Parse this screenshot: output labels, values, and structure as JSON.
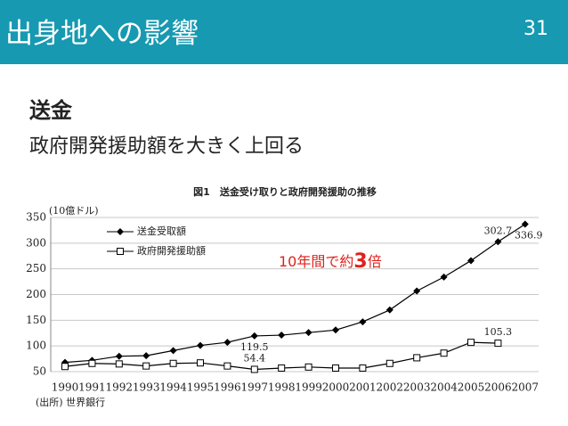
{
  "header": {
    "title": "出身地への影響",
    "page": "31"
  },
  "heading": "送金",
  "subheading": "政府開発援助額を大きく上回る",
  "chart_data": {
    "type": "line",
    "title": "図1　送金受け取りと政府開発援助の推移",
    "y_label": "(10億ドル)",
    "source": "(出所) 世界銀行",
    "annotation": {
      "prefix": "10年間で約",
      "emphasis": "3",
      "suffix": "倍"
    },
    "categories": [
      "1990",
      "1991",
      "1992",
      "1993",
      "1994",
      "1995",
      "1996",
      "1997",
      "1998",
      "1999",
      "2000",
      "2001",
      "2002",
      "2003",
      "2004",
      "2005",
      "2006",
      "2007"
    ],
    "series": [
      {
        "name": "送金受取額",
        "color": "#000000",
        "marker": "diamond",
        "values": [
          68,
          72,
          80,
          81,
          91,
          101,
          107,
          119.5,
          121,
          126,
          131,
          147,
          170,
          207,
          234,
          266,
          302.7,
          336.9
        ],
        "value_labels": [
          null,
          null,
          null,
          null,
          null,
          null,
          null,
          "119.5",
          null,
          null,
          null,
          null,
          null,
          null,
          null,
          null,
          "302.7",
          "336.9"
        ]
      },
      {
        "name": "政府開発援助額",
        "color": "#000000",
        "marker": "square",
        "values": [
          60,
          66,
          65,
          61,
          66,
          67,
          61,
          54.4,
          57,
          59,
          57,
          57,
          66,
          77,
          86,
          107,
          105.3,
          null
        ],
        "value_labels": [
          null,
          null,
          null,
          null,
          null,
          null,
          null,
          "54.4",
          null,
          null,
          null,
          null,
          null,
          null,
          null,
          null,
          "105.3",
          null
        ]
      }
    ],
    "ylim": [
      50,
      350
    ],
    "yticks": [
      50,
      100,
      150,
      200,
      250,
      300,
      350
    ],
    "grid": true
  }
}
